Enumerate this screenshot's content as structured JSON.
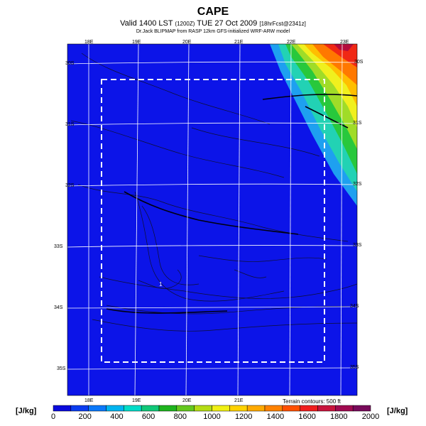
{
  "title": "CAPE",
  "subtitle_main": "Valid 1400 LST",
  "subtitle_small1": "(1200Z)",
  "subtitle_date": "TUE 27 Oct 2009",
  "subtitle_small2": "[18hrFcst@2341z]",
  "credit": "Dr.Jack BLIPMAP from RASP 12km GFS-initialized WRF-ARW model",
  "lon_top": [
    "18E",
    "19E",
    "20E",
    "21E",
    "22E",
    "23E"
  ],
  "lon_bottom": [
    "18E",
    "19E",
    "20E",
    "21E"
  ],
  "lat_left": [
    "30S",
    "31S",
    "32S",
    "33S",
    "34S",
    "35S"
  ],
  "lat_right": [
    "30S",
    "31S",
    "32S",
    "33S",
    "34S",
    "35S"
  ],
  "point_label": "1",
  "units_left": "[J/kg]",
  "units_right": "[J/kg]",
  "terrain_note": "Terrain contours: 500 ft",
  "colorbar": {
    "labels": [
      "0",
      "200",
      "400",
      "600",
      "800",
      "1000",
      "1200",
      "1400",
      "1600",
      "1800",
      "2000"
    ],
    "colors": [
      "#0a0adc",
      "#0a3cf0",
      "#0a78fa",
      "#00b4f0",
      "#00dcc8",
      "#10c878",
      "#1eb41e",
      "#64c81e",
      "#b4dc14",
      "#f0f014",
      "#ffd200",
      "#ffaa00",
      "#ff8200",
      "#ff5000",
      "#f01e1e",
      "#c8143c",
      "#a00a50",
      "#780a5a"
    ]
  },
  "map_colors": {
    "background": "#0c14e8",
    "cape_high": [
      "#1ea0f0",
      "#22d2b4",
      "#28c83c",
      "#a0dc28",
      "#f0f01e",
      "#ffbe00",
      "#ff7800",
      "#f02814",
      "#b40a3c"
    ]
  },
  "max_cape_jkg": 2000
}
